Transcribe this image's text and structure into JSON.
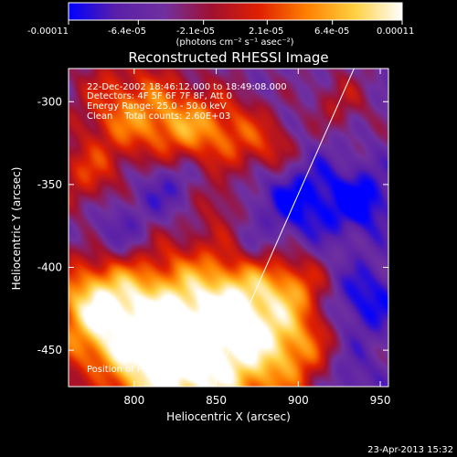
{
  "colorbar": {
    "tick_labels": [
      "-0.00011",
      "-6.4e-05",
      "-2.1e-05",
      "2.1e-05",
      "6.4e-05",
      "0.00011"
    ],
    "tick_values": [
      -0.00011,
      -6.4e-05,
      -2.1e-05,
      2.1e-05,
      6.4e-05,
      0.00011
    ],
    "range": [
      -0.00011,
      0.00011
    ],
    "unit_label": "(photons cm⁻² s⁻¹ asec⁻²)",
    "colors": [
      "#0000ff",
      "#5a1fa8",
      "#7030a0",
      "#a01030",
      "#e02000",
      "#ff8000",
      "#ffd040",
      "#ffffff"
    ]
  },
  "chart_data": {
    "type": "heatmap",
    "title": "Reconstructed RHESSI Image",
    "xlabel": "Heliocentric X (arcsec)",
    "ylabel": "Heliocentric Y (arcsec)",
    "xlim": [
      760,
      955
    ],
    "ylim": [
      -472,
      -280
    ],
    "x_ticks": [
      800,
      850,
      900,
      950
    ],
    "x_tick_labels": [
      "800",
      "850",
      "900",
      "950"
    ],
    "y_ticks": [
      -300,
      -350,
      -400,
      -450
    ],
    "y_tick_labels": [
      "-300",
      "-350",
      "-400",
      "-450"
    ],
    "annotations": [
      "22-Dec-2002 18:46:12.000 to 18:49:08.000",
      "Detectors: 4F 5F 6F 7F 8F, Att 0",
      "Energy Range: 25.0 - 50.0 keV",
      "Clean    Total counts: 2.60E+03"
    ],
    "peak_label": "Position of Peak = [759,-441]",
    "limb_line": [
      [
        848,
        -472
      ],
      [
        934,
        -280
      ]
    ],
    "blobs": [
      {
        "x": 840,
        "y": -455,
        "s": 38,
        "a": 1.0
      },
      {
        "x": 800,
        "y": -440,
        "s": 32,
        "a": 0.7
      },
      {
        "x": 870,
        "y": -420,
        "s": 24,
        "a": 0.6
      },
      {
        "x": 775,
        "y": -420,
        "s": 18,
        "a": 0.55
      },
      {
        "x": 900,
        "y": -450,
        "s": 18,
        "a": 0.4
      },
      {
        "x": 795,
        "y": -305,
        "s": 22,
        "a": 0.6
      },
      {
        "x": 830,
        "y": -315,
        "s": 18,
        "a": 0.55
      },
      {
        "x": 860,
        "y": -318,
        "s": 16,
        "a": 0.45
      },
      {
        "x": 885,
        "y": -330,
        "s": 12,
        "a": 0.4
      },
      {
        "x": 770,
        "y": -345,
        "s": 14,
        "a": 0.4
      },
      {
        "x": 850,
        "y": -360,
        "s": 10,
        "a": 0.25
      },
      {
        "x": 925,
        "y": -300,
        "s": 12,
        "a": 0.3
      },
      {
        "x": 900,
        "y": -410,
        "s": 12,
        "a": 0.3
      },
      {
        "x": 820,
        "y": -350,
        "s": 14,
        "a": -0.35
      },
      {
        "x": 900,
        "y": -360,
        "s": 20,
        "a": -0.5
      },
      {
        "x": 940,
        "y": -420,
        "s": 16,
        "a": -0.45
      },
      {
        "x": 940,
        "y": -360,
        "s": 14,
        "a": -0.45
      },
      {
        "x": 790,
        "y": -380,
        "s": 14,
        "a": -0.35
      },
      {
        "x": 870,
        "y": -390,
        "s": 10,
        "a": -0.25
      },
      {
        "x": 930,
        "y": -465,
        "s": 14,
        "a": -0.3
      },
      {
        "x": 780,
        "y": -470,
        "s": 10,
        "a": -0.25
      }
    ],
    "ripple": {
      "amp": 0.12,
      "kx": 0.16,
      "ky": 0.14
    }
  },
  "footer": {
    "date": "23-Apr-2013 15:32"
  }
}
